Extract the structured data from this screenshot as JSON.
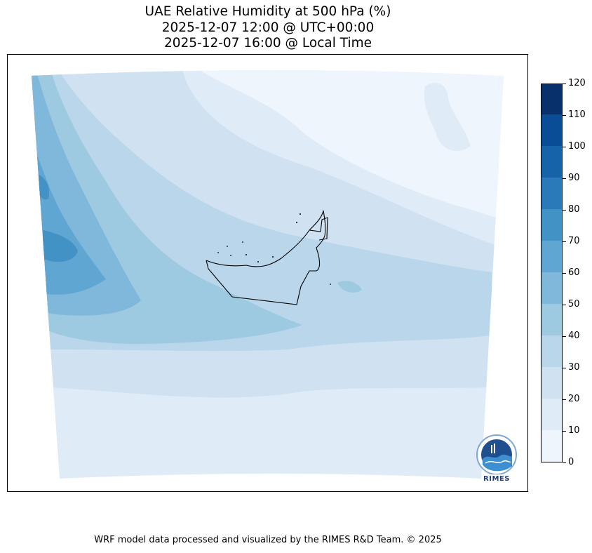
{
  "title": {
    "line1": "UAE Relative Humidity at 500 hPa (%)",
    "line2": "2025-12-07 12:00 @ UTC+00:00",
    "line3": "2025-12-07 16:00 @ Local Time"
  },
  "colorbar": {
    "ticks": [
      "0",
      "10",
      "20",
      "30",
      "40",
      "50",
      "60",
      "70",
      "80",
      "90",
      "100",
      "110",
      "120"
    ],
    "levels": [
      0,
      10,
      20,
      30,
      40,
      50,
      60,
      70,
      80,
      90,
      100,
      110,
      120
    ],
    "colors": [
      "#eef5fc",
      "#dfebf7",
      "#d0e2f2",
      "#bad6eb",
      "#9ecae1",
      "#7fb8da",
      "#60a6d2",
      "#4292c6",
      "#2a7ab9",
      "#1663aa",
      "#084d96",
      "#08306b"
    ]
  },
  "logo": {
    "text": "RIMES"
  },
  "footer": "WRF model data processed and visualized by the RIMES R&D Team. © 2025"
}
